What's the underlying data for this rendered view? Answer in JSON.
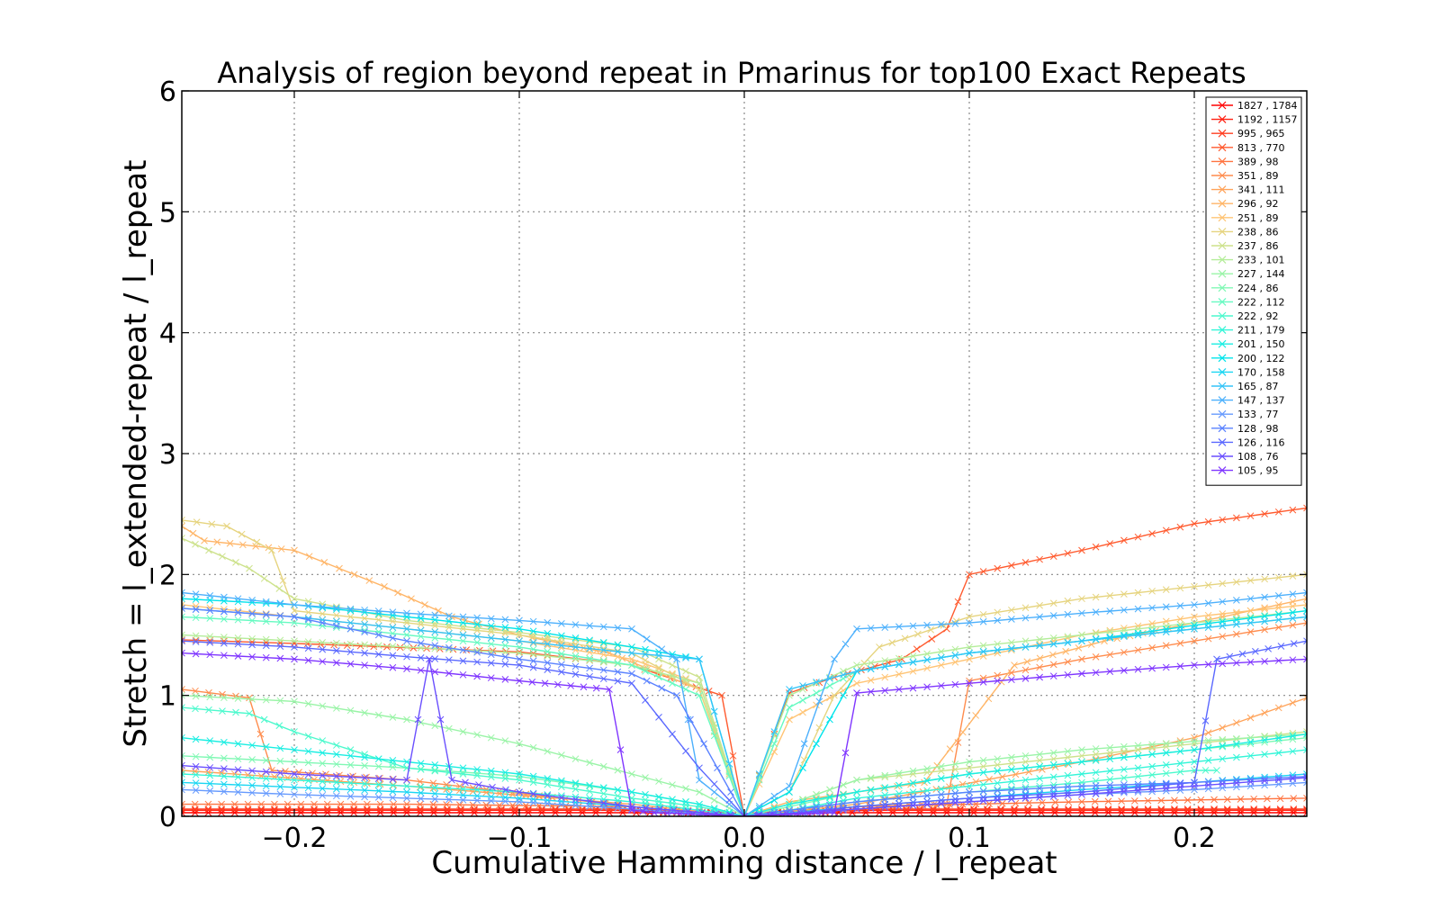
{
  "chart_data": {
    "type": "line",
    "title": "Analysis of region beyond repeat in Pmarinus for top100 Exact Repeats",
    "xlabel": "Cumulative Hamming distance / l_repeat",
    "ylabel": "Stretch =  l_extended-repeat / l_repeat",
    "xlim": [
      -0.25,
      0.25
    ],
    "ylim": [
      0,
      6
    ],
    "xticks": [
      -0.2,
      -0.1,
      0.0,
      0.1,
      0.2
    ],
    "xtick_labels": [
      "−0.2",
      "−0.1",
      "0.0",
      "0.1",
      "0.2"
    ],
    "yticks": [
      0,
      1,
      2,
      3,
      4,
      5,
      6
    ],
    "ytick_labels": [
      "0",
      "1",
      "2",
      "3",
      "4",
      "5",
      "6"
    ],
    "grid": true,
    "legend_position": "top-right",
    "marker": "x",
    "series": [
      {
        "name": "1827 , 1784",
        "color": "#ff0000",
        "x": [
          -0.25,
          -0.15,
          -0.06,
          -0.03,
          -0.015,
          0,
          0.015,
          0.03,
          0.06,
          0.15,
          0.25
        ],
        "y": [
          0.03,
          0.03,
          0.03,
          0.03,
          0.02,
          0,
          0.02,
          0.03,
          0.03,
          0.03,
          0.03
        ]
      },
      {
        "name": "1192 , 1157",
        "color": "#ff1f10",
        "x": [
          -0.25,
          -0.15,
          -0.06,
          -0.03,
          -0.015,
          0,
          0.015,
          0.03,
          0.06,
          0.15,
          0.25
        ],
        "y": [
          0.05,
          0.05,
          0.05,
          0.04,
          0.03,
          0,
          0.03,
          0.04,
          0.05,
          0.05,
          0.05
        ]
      },
      {
        "name": "995 , 965",
        "color": "#ff3d1f",
        "x": [
          -0.25,
          -0.15,
          -0.06,
          -0.03,
          -0.015,
          0,
          0.015,
          0.03,
          0.06,
          0.15,
          0.25
        ],
        "y": [
          0.06,
          0.06,
          0.06,
          0.05,
          0.04,
          0,
          0.04,
          0.05,
          0.06,
          0.06,
          0.06
        ]
      },
      {
        "name": "813 , 770",
        "color": "#ff5a2e",
        "x": [
          -0.25,
          -0.2,
          -0.1,
          -0.05,
          -0.01,
          0,
          0.02,
          0.04,
          0.07,
          0.09,
          0.1,
          0.15,
          0.2,
          0.25
        ],
        "y": [
          1.46,
          1.43,
          1.36,
          1.25,
          1.0,
          0,
          1.02,
          1.15,
          1.3,
          1.55,
          2.0,
          2.2,
          2.42,
          2.55
        ]
      },
      {
        "name": "389 , 98",
        "color": "#ff7440",
        "x": [
          -0.25,
          -0.15,
          -0.05,
          0,
          0.05,
          0.15,
          0.25
        ],
        "y": [
          0.1,
          0.1,
          0.08,
          0,
          0.08,
          0.12,
          0.15
        ]
      },
      {
        "name": "351 , 89",
        "color": "#ff8c4d",
        "x": [
          -0.25,
          -0.22,
          -0.21,
          -0.15,
          -0.05,
          0,
          0.05,
          0.09,
          0.1,
          0.15,
          0.2,
          0.25
        ],
        "y": [
          1.05,
          0.98,
          0.38,
          0.3,
          0.08,
          0,
          0.08,
          0.1,
          1.12,
          1.3,
          1.45,
          1.6
        ]
      },
      {
        "name": "341 , 111",
        "color": "#ffa35a",
        "x": [
          -0.25,
          -0.15,
          -0.05,
          0,
          0.05,
          0.15,
          0.2,
          0.25
        ],
        "y": [
          0.38,
          0.25,
          0.1,
          0,
          0.1,
          0.45,
          0.65,
          0.98
        ]
      },
      {
        "name": "296 , 92",
        "color": "#ffb567",
        "x": [
          -0.25,
          -0.24,
          -0.2,
          -0.18,
          -0.16,
          -0.13,
          -0.1,
          -0.06,
          -0.02,
          0,
          0.02,
          0.05,
          0.08,
          0.12,
          0.16,
          0.2,
          0.25
        ],
        "y": [
          2.4,
          2.28,
          2.2,
          2.05,
          1.9,
          1.65,
          1.5,
          1.35,
          1.05,
          0,
          0.12,
          0.2,
          0.28,
          1.25,
          1.45,
          1.6,
          1.8
        ]
      },
      {
        "name": "251 , 89",
        "color": "#ffc474",
        "x": [
          -0.25,
          -0.2,
          -0.15,
          -0.1,
          -0.05,
          -0.02,
          0,
          0.02,
          0.05,
          0.1,
          0.15,
          0.2,
          0.25
        ],
        "y": [
          1.75,
          1.65,
          1.55,
          1.45,
          1.3,
          1.1,
          0,
          0.8,
          1.1,
          1.3,
          1.5,
          1.65,
          1.75
        ]
      },
      {
        "name": "238 , 86",
        "color": "#e6d47f",
        "x": [
          -0.25,
          -0.23,
          -0.21,
          -0.2,
          -0.15,
          -0.1,
          -0.05,
          -0.02,
          0,
          0.02,
          0.04,
          0.06,
          0.1,
          0.15,
          0.2,
          0.25
        ],
        "y": [
          2.45,
          2.4,
          2.2,
          1.7,
          1.6,
          1.5,
          1.35,
          1.05,
          0,
          0.2,
          1.0,
          1.4,
          1.65,
          1.8,
          1.9,
          2.0
        ]
      },
      {
        "name": "237 , 86",
        "color": "#cde28c",
        "x": [
          -0.25,
          -0.22,
          -0.2,
          -0.15,
          -0.1,
          -0.05,
          -0.02,
          0,
          0.02,
          0.05,
          0.1,
          0.15,
          0.2,
          0.25
        ],
        "y": [
          2.3,
          2.05,
          1.8,
          1.62,
          1.52,
          1.4,
          1.15,
          0,
          0.1,
          0.3,
          0.4,
          0.5,
          0.6,
          0.7
        ]
      },
      {
        "name": "233 , 101",
        "color": "#b4ed9a",
        "x": [
          -0.25,
          -0.2,
          -0.15,
          -0.1,
          -0.05,
          -0.02,
          0,
          0.02,
          0.05,
          0.1,
          0.15,
          0.2,
          0.25
        ],
        "y": [
          1.5,
          1.45,
          1.4,
          1.35,
          1.25,
          1.1,
          0,
          1.0,
          1.25,
          1.4,
          1.5,
          1.6,
          1.7
        ]
      },
      {
        "name": "227 , 144",
        "color": "#9af4a7",
        "x": [
          -0.25,
          -0.2,
          -0.15,
          -0.1,
          -0.05,
          -0.02,
          0,
          0.02,
          0.05,
          0.1,
          0.15,
          0.2,
          0.25
        ],
        "y": [
          1.0,
          0.95,
          0.8,
          0.6,
          0.35,
          0.2,
          0,
          0.1,
          0.3,
          0.45,
          0.55,
          0.62,
          0.68
        ]
      },
      {
        "name": "224 , 86",
        "color": "#80f8b4",
        "x": [
          -0.25,
          -0.2,
          -0.15,
          -0.1,
          -0.05,
          -0.02,
          0,
          0.02,
          0.05,
          0.1,
          0.15,
          0.2,
          0.25
        ],
        "y": [
          0.5,
          0.45,
          0.4,
          0.33,
          0.2,
          0.1,
          0,
          0.08,
          0.2,
          0.35,
          0.45,
          0.55,
          0.65
        ]
      },
      {
        "name": "222 , 112",
        "color": "#66fac1",
        "x": [
          -0.25,
          -0.2,
          -0.15,
          -0.1,
          -0.05,
          -0.02,
          0,
          0.02,
          0.05,
          0.1,
          0.15,
          0.2,
          0.25
        ],
        "y": [
          1.65,
          1.6,
          1.5,
          1.4,
          1.25,
          1.0,
          0,
          0.9,
          1.2,
          1.35,
          1.45,
          1.55,
          1.65
        ]
      },
      {
        "name": "222 , 92",
        "color": "#4cf9cd",
        "x": [
          -0.25,
          -0.22,
          -0.2,
          -0.15,
          -0.1,
          -0.05,
          -0.02,
          0,
          0.02,
          0.05,
          0.1,
          0.15,
          0.2,
          0.21
        ],
        "y": [
          0.9,
          0.85,
          0.7,
          0.4,
          0.3,
          0.15,
          0.08,
          0,
          0.05,
          0.12,
          0.2,
          0.28,
          0.38,
          0.38
        ]
      },
      {
        "name": "211 , 179",
        "color": "#33f5d8",
        "x": [
          -0.25,
          -0.2,
          -0.15,
          -0.1,
          -0.05,
          -0.02,
          0,
          0.02,
          0.05,
          0.1,
          0.15,
          0.2,
          0.25
        ],
        "y": [
          0.35,
          0.3,
          0.25,
          0.2,
          0.12,
          0.05,
          0,
          0.05,
          0.15,
          0.25,
          0.35,
          0.45,
          0.55
        ]
      },
      {
        "name": "201 , 150",
        "color": "#1aeee2",
        "x": [
          -0.25,
          -0.2,
          -0.15,
          -0.1,
          -0.05,
          -0.02,
          0,
          0.02,
          0.05,
          0.1,
          0.15,
          0.2,
          0.25
        ],
        "y": [
          0.65,
          0.55,
          0.45,
          0.35,
          0.2,
          0.1,
          0,
          0.1,
          0.2,
          0.35,
          0.45,
          0.55,
          0.68
        ]
      },
      {
        "name": "200 , 122",
        "color": "#00e4eb",
        "x": [
          -0.25,
          -0.2,
          -0.15,
          -0.1,
          -0.05,
          -0.02,
          0,
          0.02,
          0.05,
          0.1,
          0.15,
          0.2,
          0.25
        ],
        "y": [
          1.8,
          1.75,
          1.65,
          1.55,
          1.4,
          1.3,
          0,
          0.2,
          1.2,
          1.35,
          1.45,
          1.58,
          1.7
        ]
      },
      {
        "name": "170 , 158",
        "color": "#1ad6f2",
        "x": [
          -0.25,
          -0.2,
          -0.15,
          -0.1,
          -0.05,
          -0.02,
          0,
          0.02,
          0.05,
          0.1,
          0.15,
          0.2,
          0.25
        ],
        "y": [
          0.28,
          0.24,
          0.2,
          0.15,
          0.08,
          0.03,
          0,
          0.03,
          0.08,
          0.15,
          0.22,
          0.28,
          0.35
        ]
      },
      {
        "name": "165 , 87",
        "color": "#33c4f8",
        "x": [
          -0.25,
          -0.2,
          -0.15,
          -0.1,
          -0.05,
          -0.02,
          0,
          0.02,
          0.05,
          0.1,
          0.15,
          0.2,
          0.25
        ],
        "y": [
          1.72,
          1.65,
          1.55,
          1.45,
          1.35,
          1.3,
          0,
          1.05,
          1.2,
          1.35,
          1.45,
          1.55,
          1.65
        ]
      },
      {
        "name": "147 , 137",
        "color": "#4cb0fc",
        "x": [
          -0.25,
          -0.2,
          -0.15,
          -0.1,
          -0.05,
          -0.03,
          -0.02,
          0,
          0.02,
          0.04,
          0.05,
          0.1,
          0.15,
          0.2,
          0.25
        ],
        "y": [
          1.85,
          1.75,
          1.68,
          1.62,
          1.55,
          1.3,
          0.3,
          0,
          0.25,
          1.3,
          1.55,
          1.6,
          1.68,
          1.75,
          1.85
        ]
      },
      {
        "name": "133 , 77",
        "color": "#669afe",
        "x": [
          -0.25,
          -0.2,
          -0.15,
          -0.1,
          -0.05,
          -0.02,
          0,
          0.02,
          0.05,
          0.1,
          0.15,
          0.2,
          0.25
        ],
        "y": [
          0.22,
          0.18,
          0.15,
          0.12,
          0.06,
          0.02,
          0,
          0.02,
          0.06,
          0.12,
          0.18,
          0.22,
          0.28
        ]
      },
      {
        "name": "128 , 98",
        "color": "#5a82ff",
        "x": [
          -0.25,
          -0.2,
          -0.15,
          -0.1,
          -0.05,
          -0.03,
          0,
          0.02,
          0.05,
          0.1,
          0.15,
          0.2,
          0.25
        ],
        "y": [
          1.72,
          1.65,
          1.45,
          1.3,
          1.18,
          1.0,
          0,
          0.05,
          0.12,
          0.2,
          0.25,
          0.28,
          0.33
        ]
      },
      {
        "name": "126 , 116",
        "color": "#5a68ff",
        "x": [
          -0.25,
          -0.2,
          -0.15,
          -0.1,
          -0.05,
          -0.02,
          0,
          0.02,
          0.05,
          0.1,
          0.15,
          0.2,
          0.21,
          0.25
        ],
        "y": [
          1.45,
          1.4,
          1.32,
          1.25,
          1.1,
          0.4,
          0,
          0.02,
          0.08,
          0.15,
          0.2,
          0.28,
          1.3,
          1.45
        ]
      },
      {
        "name": "108 , 76",
        "color": "#6a4fff",
        "x": [
          -0.25,
          -0.2,
          -0.15,
          -0.14,
          -0.13,
          -0.1,
          -0.05,
          0,
          0.05,
          0.1,
          0.15,
          0.2,
          0.25
        ],
        "y": [
          0.42,
          0.35,
          0.3,
          1.3,
          0.3,
          0.2,
          0.08,
          0,
          0.06,
          0.12,
          0.18,
          0.25,
          0.32
        ]
      },
      {
        "name": "105 , 95",
        "color": "#7f35ff",
        "x": [
          -0.25,
          -0.2,
          -0.15,
          -0.1,
          -0.06,
          -0.05,
          -0.04,
          0,
          0.04,
          0.05,
          0.1,
          0.15,
          0.2,
          0.25
        ],
        "y": [
          1.35,
          1.3,
          1.22,
          1.12,
          1.05,
          0.05,
          0.03,
          0,
          0.03,
          1.02,
          1.1,
          1.18,
          1.25,
          1.3
        ]
      }
    ]
  }
}
